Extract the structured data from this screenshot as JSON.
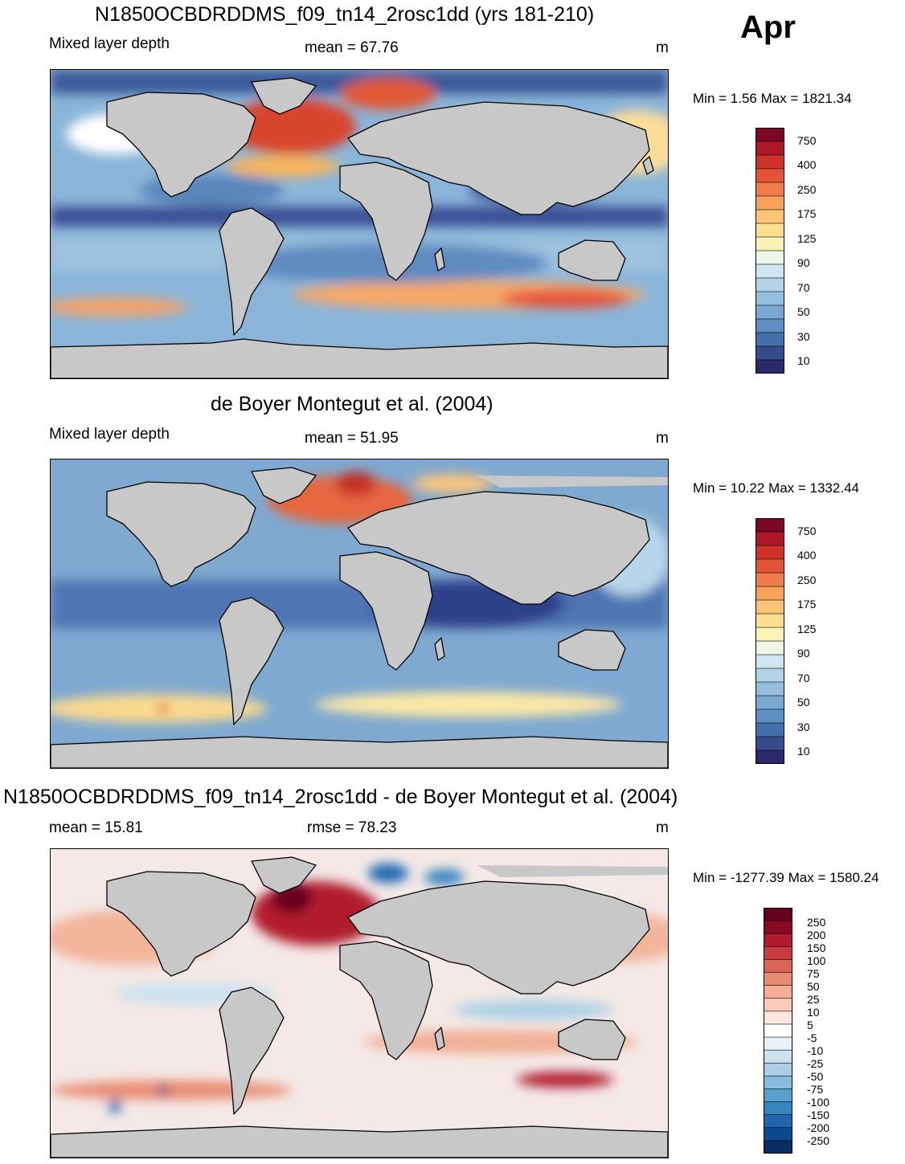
{
  "month": "Apr",
  "units": "m",
  "colors": {
    "land": "#c8c8c8",
    "abs_scale": [
      "#2a2a6a",
      "#364c8f",
      "#4170ad",
      "#5e8fc4",
      "#79a8d3",
      "#95bfdf",
      "#b3d4e8",
      "#d0e6f2",
      "#eef6e6",
      "#fbf2b8",
      "#fde08f",
      "#fdc474",
      "#f9a25b",
      "#f07c49",
      "#e35437",
      "#cf3228",
      "#ae1826",
      "#7d0825"
    ],
    "diff_scale": [
      "#062e63",
      "#0c4a8e",
      "#1c67b0",
      "#3584c0",
      "#5aa0cf",
      "#86bcdc",
      "#abd0e6",
      "#cde2ef",
      "#e8f1f7",
      "#ffffff",
      "#fbe6dc",
      "#f8ccb8",
      "#f3ae95",
      "#e98b73",
      "#dc6357",
      "#c93c3d",
      "#b01c2e",
      "#8a0a23",
      "#67001f"
    ]
  },
  "panels": [
    {
      "title": "N1850OCBDRDDMS_f09_tn14_2rosc1dd (yrs 181-210)",
      "left_label": "Mixed layer depth",
      "center_label": "mean =  67.76",
      "units": "m",
      "minmax": "Min =   1.56 Max = 1821.34",
      "colorbar_labels": [
        "750",
        "400",
        "250",
        "175",
        "125",
        "90",
        "70",
        "50",
        "30",
        "10"
      ]
    },
    {
      "title": "de Boyer Montegut et al. (2004)",
      "left_label": "Mixed layer depth",
      "center_label": "mean =  51.95",
      "units": "m",
      "minmax": "Min =  10.22 Max = 1332.44",
      "colorbar_labels": [
        "750",
        "400",
        "250",
        "175",
        "125",
        "90",
        "70",
        "50",
        "30",
        "10"
      ]
    },
    {
      "title": "N1850OCBDRDDMS_f09_tn14_2rosc1dd - de Boyer Montegut et al. (2004)",
      "left_label": "mean =  15.81",
      "center_label": "rmse =  78.23",
      "units": "m",
      "minmax": "Min = -1277.39 Max = 1580.24",
      "colorbar_labels": [
        "250",
        "200",
        "150",
        "100",
        "75",
        "50",
        "25",
        "10",
        "5",
        "-5",
        "-10",
        "-25",
        "-50",
        "-75",
        "-100",
        "-150",
        "-200",
        "-250"
      ]
    }
  ]
}
